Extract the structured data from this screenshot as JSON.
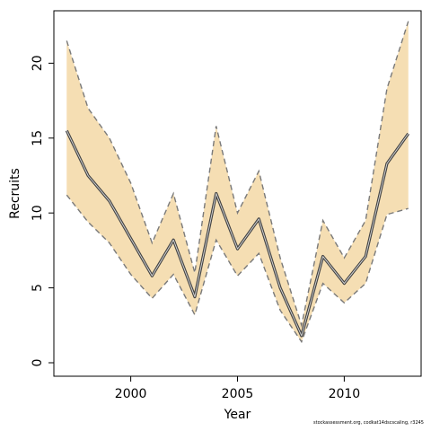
{
  "chart_data": {
    "type": "area",
    "xlabel": "Year",
    "ylabel": "Recruits",
    "xlim": [
      1996.4,
      2013.6
    ],
    "ylim": [
      -0.9,
      23.5
    ],
    "xticks": [
      2000,
      2005,
      2010
    ],
    "yticks": [
      0,
      5,
      10,
      15,
      20
    ],
    "x": [
      1997,
      1998,
      1999,
      2000,
      2001,
      2002,
      2003,
      2004,
      2005,
      2006,
      2007,
      2008,
      2009,
      2010,
      2011,
      2012,
      2013
    ],
    "series": [
      {
        "values": [
          15.5,
          12.5,
          10.8,
          8.3,
          5.8,
          8.2,
          4.4,
          11.3,
          7.6,
          9.6,
          5.0,
          1.8,
          7.1,
          5.3,
          7.1,
          13.3,
          15.3
        ]
      },
      {
        "values": [
          21.5,
          17.0,
          15.0,
          12.0,
          8.0,
          11.3,
          6.0,
          15.8,
          10.0,
          12.8,
          7.0,
          2.5,
          9.5,
          7.0,
          9.5,
          18.3,
          22.8
        ]
      },
      {
        "values": [
          11.2,
          9.4,
          8.0,
          5.9,
          4.3,
          5.9,
          3.2,
          8.2,
          5.8,
          7.3,
          3.5,
          1.4,
          5.3,
          4.0,
          5.3,
          9.9,
          10.3
        ]
      }
    ],
    "band_color": "#f5deb3",
    "line_color": "#444444",
    "bound_color": "#7a7a7a",
    "grid": false,
    "legend": "none"
  },
  "footer": "stockassessment.org, codkat14dscscaling, r3245"
}
